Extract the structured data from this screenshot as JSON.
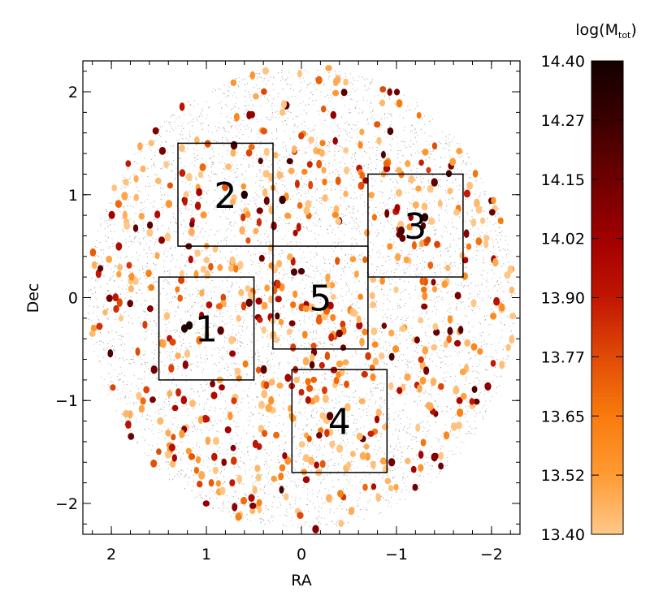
{
  "chart_data": [
    {
      "type": "scatter",
      "xlabel": "RA",
      "ylabel": "Dec",
      "xlim": [
        2.3,
        -2.3
      ],
      "ylim": [
        -2.3,
        2.3
      ],
      "x_axis_reversed": true,
      "x_ticks": [
        2,
        1,
        0,
        -1,
        -2
      ],
      "x_tick_labels": [
        "2",
        "1",
        "0",
        "−1",
        "−2"
      ],
      "y_ticks": [
        2,
        1,
        0,
        -1,
        -2
      ],
      "y_tick_labels": [
        "2",
        "1",
        "0",
        "−1",
        "−2"
      ],
      "grid": false,
      "field": {
        "shape": "circle",
        "center": [
          0,
          0
        ],
        "radius": 2.25,
        "background_points": "dense grey dots"
      },
      "color_field": "log(M_tot)",
      "regions": [
        {
          "label": "1",
          "ra_range": [
            0.5,
            1.5
          ],
          "dec_range": [
            -0.8,
            0.2
          ]
        },
        {
          "label": "2",
          "ra_range": [
            0.3,
            1.3
          ],
          "dec_range": [
            0.5,
            1.5
          ]
        },
        {
          "label": "3",
          "ra_range": [
            -1.7,
            -0.7
          ],
          "dec_range": [
            0.2,
            1.2
          ]
        },
        {
          "label": "4",
          "ra_range": [
            -0.9,
            0.1
          ],
          "dec_range": [
            -1.7,
            -0.7
          ]
        },
        {
          "label": "5",
          "ra_range": [
            -0.7,
            0.3
          ],
          "dec_range": [
            -0.5,
            0.5
          ]
        }
      ],
      "highlighted_points": [
        {
          "ra": 1.18,
          "dec": -0.27,
          "logM": 14.38
        },
        {
          "ra": 1.23,
          "dec": -0.3,
          "logM": 14.36
        },
        {
          "ra": 0.6,
          "dec": 1.0,
          "logM": 14.36
        },
        {
          "ra": 0.2,
          "dec": 0.95,
          "logM": 14.3
        },
        {
          "ra": 0.71,
          "dec": 1.48,
          "logM": 14.25
        },
        {
          "ra": -1.3,
          "dec": 0.78,
          "logM": 14.3
        },
        {
          "ra": -1.05,
          "dec": 0.65,
          "logM": 14.25
        },
        {
          "ra": -1.4,
          "dec": 1.12,
          "logM": 14.2
        },
        {
          "ra": 0.85,
          "dec": -0.32,
          "logM": 14.2
        },
        {
          "ra": 0.55,
          "dec": -0.05,
          "logM": 14.2
        },
        {
          "ra": -0.3,
          "dec": -1.15,
          "logM": 14.2
        },
        {
          "ra": -0.95,
          "dec": -1.6,
          "logM": 14.15
        },
        {
          "ra": 1.55,
          "dec": -0.7,
          "logM": 14.15
        },
        {
          "ra": -1.4,
          "dec": -1.55,
          "logM": 14.1
        },
        {
          "ra": -0.15,
          "dec": -2.25,
          "logM": 14.1
        }
      ],
      "point_count_estimate": 650,
      "point_value_range": [
        13.4,
        14.4
      ]
    },
    {
      "type": "heatmap",
      "role": "colorbar",
      "title": "log(M",
      "title_subscript": "tot",
      "title_close": ")",
      "range": [
        13.4,
        14.4
      ],
      "tick_labels": [
        "14.40",
        "14.27",
        "14.15",
        "14.02",
        "13.90",
        "13.77",
        "13.65",
        "13.52",
        "13.40"
      ],
      "colormap": [
        "#ffc787",
        "#ff9a32",
        "#f97a0d",
        "#e04b06",
        "#c21603",
        "#a10000",
        "#700000",
        "#3d0000",
        "#150000"
      ]
    }
  ],
  "colors": {
    "field_dots": "#9a9a9a",
    "frame": "#000000"
  }
}
